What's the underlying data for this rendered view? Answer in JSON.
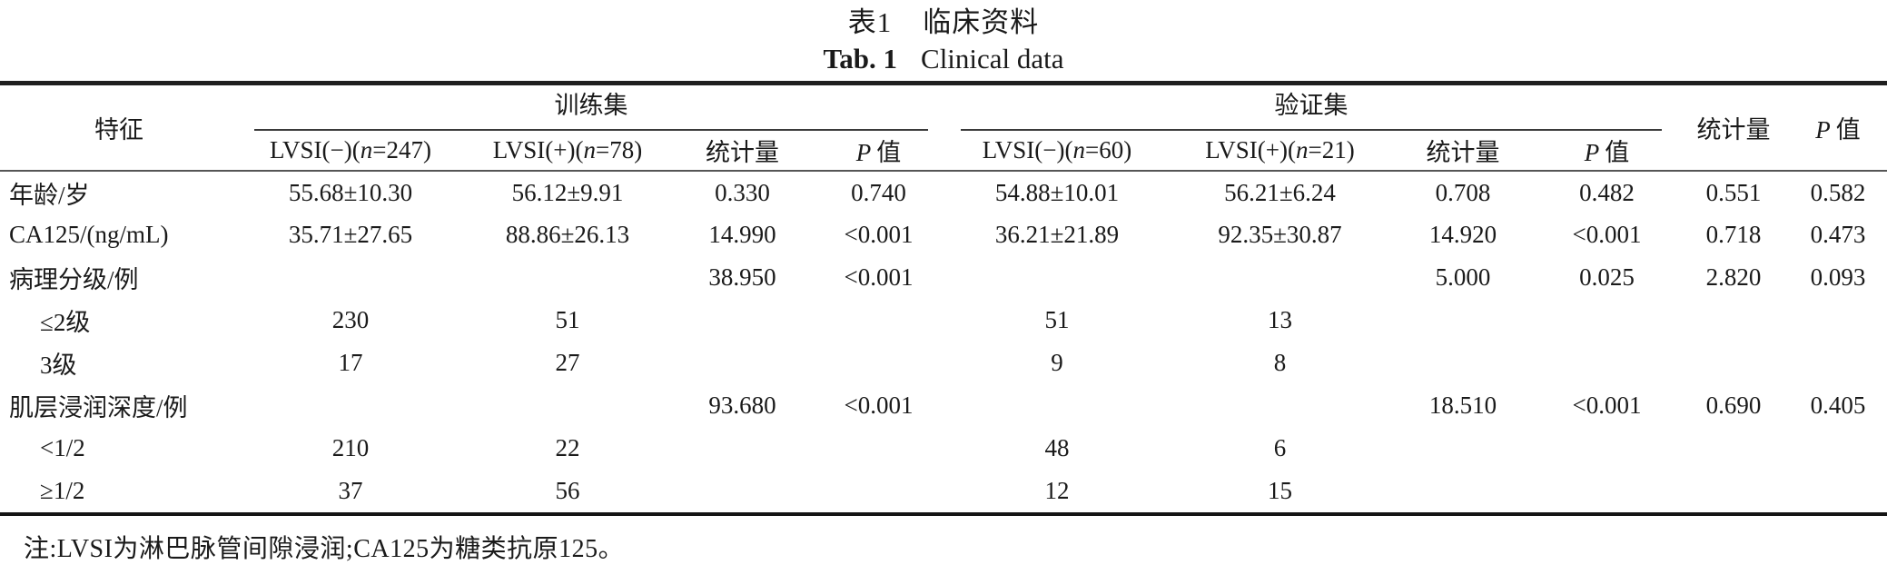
{
  "title": {
    "zh_label": "表1",
    "zh_text": "临床资料",
    "en_label": "Tab. 1",
    "en_text": "Clinical data"
  },
  "table": {
    "columns": {
      "feature": "特征",
      "train": {
        "group": "训练集",
        "neg": {
          "pre": "LVSI(−)(",
          "n": "n",
          "post": "=247)"
        },
        "pos": {
          "pre": "LVSI(+)(",
          "n": "n",
          "post": "=78)"
        },
        "stat": "统计量",
        "p": {
          "it": "P",
          "post": "值"
        }
      },
      "valid": {
        "group": "验证集",
        "neg": {
          "pre": "LVSI(−)(",
          "n": "n",
          "post": "=60)"
        },
        "pos": {
          "pre": "LVSI(+)(",
          "n": "n",
          "post": "=21)"
        },
        "stat": "统计量",
        "p": {
          "it": "P",
          "post": "值"
        }
      },
      "overall": {
        "stat": "统计量",
        "p": {
          "it": "P",
          "post": "值"
        }
      }
    },
    "rows": [
      {
        "label": "年龄/岁",
        "indent": false,
        "cells": [
          "55.68±10.30",
          "56.12±9.91",
          "0.330",
          "0.740",
          "54.88±10.01",
          "56.21±6.24",
          "0.708",
          "0.482",
          "0.551",
          "0.582"
        ]
      },
      {
        "label": "CA125/(ng/mL)",
        "indent": false,
        "cells": [
          "35.71±27.65",
          "88.86±26.13",
          "14.990",
          "<0.001",
          "36.21±21.89",
          "92.35±30.87",
          "14.920",
          "<0.001",
          "0.718",
          "0.473"
        ]
      },
      {
        "label": "病理分级/例",
        "indent": false,
        "cells": [
          "",
          "",
          "38.950",
          "<0.001",
          "",
          "",
          "5.000",
          "0.025",
          "2.820",
          "0.093"
        ]
      },
      {
        "label": "≤2级",
        "indent": true,
        "cells": [
          "230",
          "51",
          "",
          "",
          "51",
          "13",
          "",
          "",
          "",
          ""
        ]
      },
      {
        "label": "3级",
        "indent": true,
        "cells": [
          "17",
          "27",
          "",
          "",
          "9",
          "8",
          "",
          "",
          "",
          ""
        ]
      },
      {
        "label": "肌层浸润深度/例",
        "indent": false,
        "cells": [
          "",
          "",
          "93.680",
          "<0.001",
          "",
          "",
          "18.510",
          "<0.001",
          "0.690",
          "0.405"
        ]
      },
      {
        "label": "<1/2",
        "indent": true,
        "cells": [
          "210",
          "22",
          "",
          "",
          "48",
          "6",
          "",
          "",
          "",
          ""
        ]
      },
      {
        "label": "≥1/2",
        "indent": true,
        "cells": [
          "37",
          "56",
          "",
          "",
          "12",
          "15",
          "",
          "",
          "",
          ""
        ]
      }
    ]
  },
  "note": "注:LVSI为淋巴脉管间隙浸润;CA125为糖类抗原125。"
}
